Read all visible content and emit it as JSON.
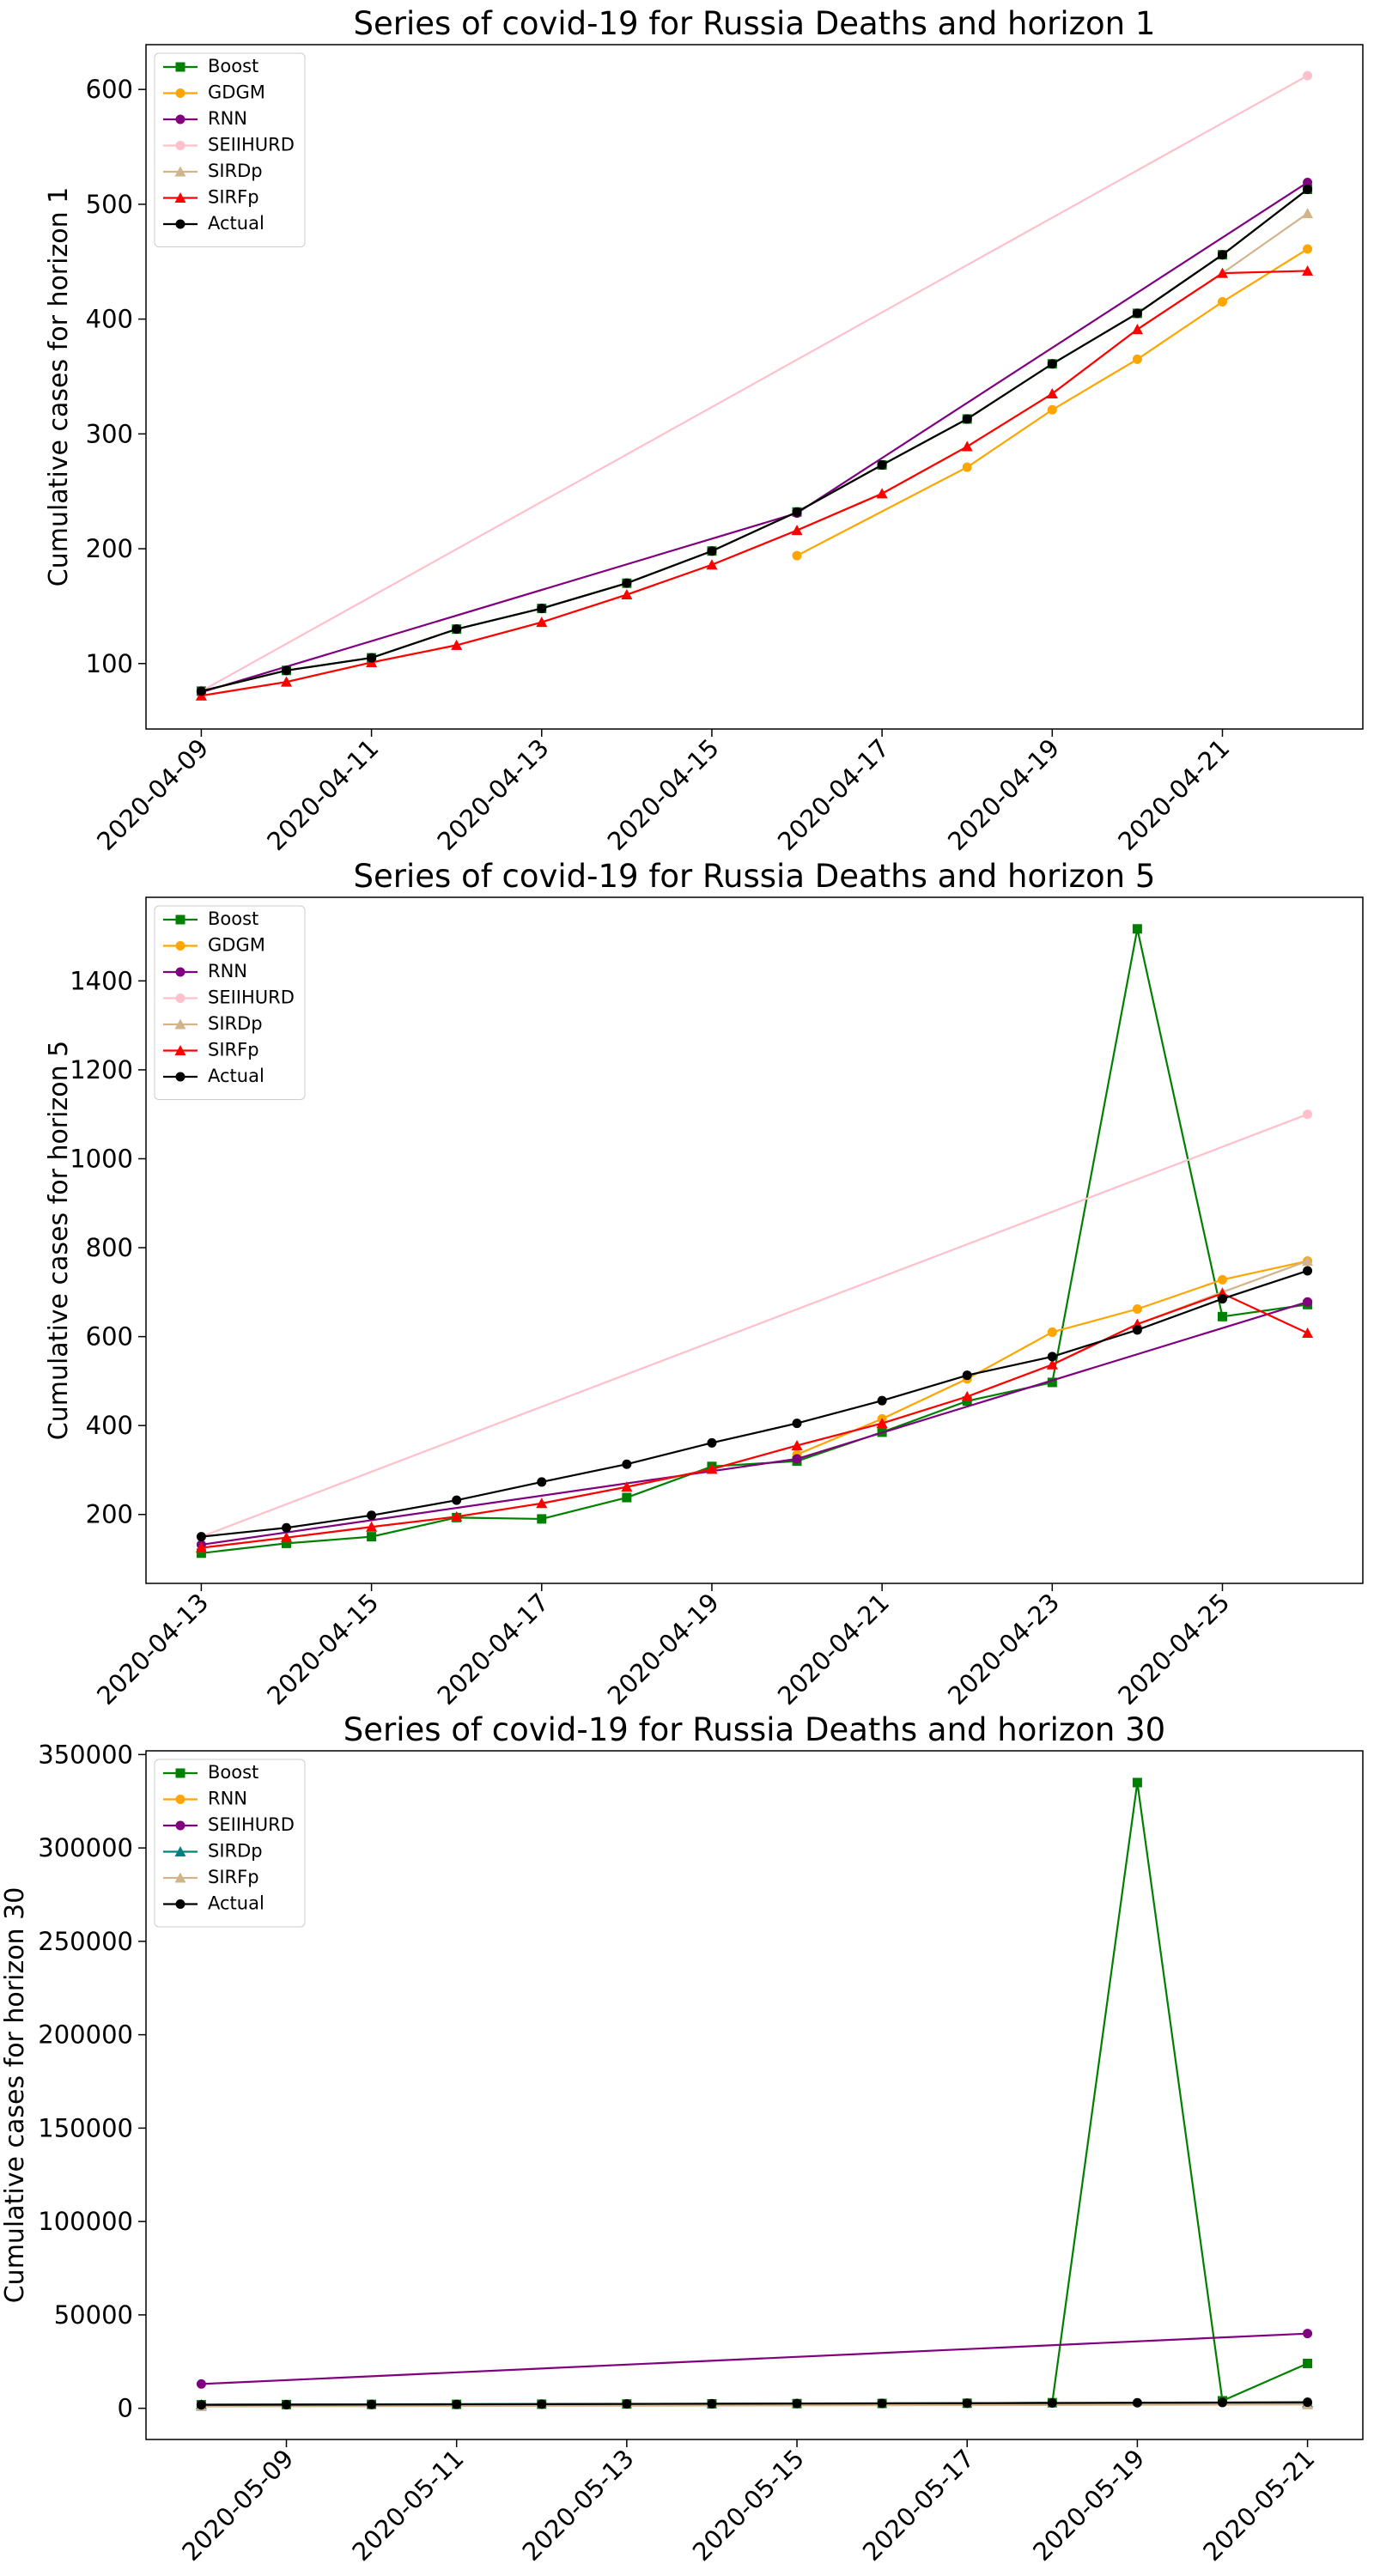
{
  "chart_data": [
    {
      "type": "line",
      "title": "Series of covid-19 for Russia Deaths and horizon 1",
      "ylabel": "Cumulative cases for horizon 1",
      "legend": "upper left",
      "ylim": [
        43,
        639
      ],
      "yticks": [
        100,
        200,
        300,
        400,
        500,
        600
      ],
      "xticks": [
        "2020-04-09",
        "2020-04-11",
        "2020-04-13",
        "2020-04-15",
        "2020-04-17",
        "2020-04-19",
        "2020-04-21"
      ],
      "series": [
        {
          "name": "Boost",
          "color": "green",
          "marker": "square",
          "x": [
            "2020-04-09",
            "2020-04-10",
            "2020-04-11",
            "2020-04-12",
            "2020-04-13",
            "2020-04-14",
            "2020-04-15",
            "2020-04-16",
            "2020-04-17",
            "2020-04-18",
            "2020-04-19",
            "2020-04-20",
            "2020-04-21",
            "2020-04-22"
          ],
          "values": [
            76,
            94,
            105,
            130,
            148,
            170,
            198,
            232,
            273,
            313,
            361,
            405,
            456,
            513
          ]
        },
        {
          "name": "GDGM",
          "color": "orange",
          "marker": "circle",
          "x": [
            "2020-04-16",
            "2020-04-18",
            "2020-04-19",
            "2020-04-20",
            "2020-04-21",
            "2020-04-22"
          ],
          "values": [
            194,
            271,
            321,
            365,
            415,
            461
          ]
        },
        {
          "name": "RNN",
          "color": "purple",
          "marker": "circle",
          "x": [
            "2020-04-09",
            "2020-04-16",
            "2020-04-22"
          ],
          "values": [
            75,
            231,
            519
          ]
        },
        {
          "name": "SEIIHURD",
          "color": "pink",
          "marker": "circle",
          "x": [
            "2020-04-09",
            "2020-04-22"
          ],
          "values": [
            76,
            612
          ]
        },
        {
          "name": "SIRDp",
          "color": "tan",
          "marker": "triangle",
          "x": [
            "2020-04-09",
            "2020-04-10",
            "2020-04-11",
            "2020-04-12",
            "2020-04-13",
            "2020-04-14",
            "2020-04-15",
            "2020-04-16",
            "2020-04-17",
            "2020-04-18",
            "2020-04-19",
            "2020-04-20",
            "2020-04-21",
            "2020-04-22"
          ],
          "values": [
            72,
            84,
            101,
            116,
            136,
            160,
            186,
            216,
            248,
            289,
            335,
            391,
            440,
            492
          ]
        },
        {
          "name": "SIRFp",
          "color": "red",
          "marker": "triangle",
          "x": [
            "2020-04-09",
            "2020-04-10",
            "2020-04-11",
            "2020-04-12",
            "2020-04-13",
            "2020-04-14",
            "2020-04-15",
            "2020-04-16",
            "2020-04-17",
            "2020-04-18",
            "2020-04-19",
            "2020-04-20",
            "2020-04-21",
            "2020-04-22"
          ],
          "values": [
            72,
            84,
            101,
            116,
            136,
            160,
            186,
            216,
            248,
            289,
            335,
            391,
            440,
            442
          ]
        },
        {
          "name": "Actual",
          "color": "black",
          "marker": "circle",
          "x": [
            "2020-04-09",
            "2020-04-10",
            "2020-04-11",
            "2020-04-12",
            "2020-04-13",
            "2020-04-14",
            "2020-04-15",
            "2020-04-16",
            "2020-04-17",
            "2020-04-18",
            "2020-04-19",
            "2020-04-20",
            "2020-04-21",
            "2020-04-22"
          ],
          "values": [
            76,
            94,
            105,
            130,
            148,
            170,
            198,
            232,
            273,
            313,
            361,
            405,
            456,
            513
          ]
        }
      ]
    },
    {
      "type": "line",
      "title": "Series of covid-19 for Russia Deaths and horizon 5",
      "ylabel": "Cumulative cases for horizon 5",
      "legend": "upper left",
      "ylim": [
        45,
        1588
      ],
      "yticks": [
        200,
        400,
        600,
        800,
        1000,
        1200,
        1400
      ],
      "xticks": [
        "2020-04-13",
        "2020-04-15",
        "2020-04-17",
        "2020-04-19",
        "2020-04-21",
        "2020-04-23",
        "2020-04-25"
      ],
      "series": [
        {
          "name": "Boost",
          "color": "green",
          "marker": "square",
          "x": [
            "2020-04-13",
            "2020-04-14",
            "2020-04-15",
            "2020-04-16",
            "2020-04-17",
            "2020-04-18",
            "2020-04-19",
            "2020-04-20",
            "2020-04-21",
            "2020-04-22",
            "2020-04-23",
            "2020-04-24",
            "2020-04-25",
            "2020-04-26"
          ],
          "values": [
            113,
            135,
            150,
            193,
            190,
            238,
            308,
            320,
            385,
            455,
            497,
            1517,
            645,
            672
          ]
        },
        {
          "name": "GDGM",
          "color": "orange",
          "marker": "circle",
          "x": [
            "2020-04-20",
            "2020-04-21",
            "2020-04-22",
            "2020-04-23",
            "2020-04-24",
            "2020-04-25",
            "2020-04-26"
          ],
          "values": [
            335,
            415,
            505,
            610,
            662,
            728,
            770
          ]
        },
        {
          "name": "RNN",
          "color": "purple",
          "marker": "circle",
          "x": [
            "2020-04-13",
            "2020-04-20",
            "2020-04-26"
          ],
          "values": [
            132,
            325,
            678
          ]
        },
        {
          "name": "SEIIHURD",
          "color": "pink",
          "marker": "circle",
          "x": [
            "2020-04-13",
            "2020-04-26"
          ],
          "values": [
            150,
            1100
          ]
        },
        {
          "name": "SIRDp",
          "color": "tan",
          "marker": "triangle",
          "x": [
            "2020-04-13",
            "2020-04-14",
            "2020-04-15",
            "2020-04-16",
            "2020-04-17",
            "2020-04-18",
            "2020-04-19",
            "2020-04-20",
            "2020-04-21",
            "2020-04-22",
            "2020-04-23",
            "2020-04-24",
            "2020-04-25",
            "2020-04-26"
          ],
          "values": [
            125,
            148,
            172,
            195,
            225,
            262,
            302,
            355,
            405,
            465,
            537,
            628,
            700,
            770
          ]
        },
        {
          "name": "SIRFp",
          "color": "red",
          "marker": "triangle",
          "x": [
            "2020-04-13",
            "2020-04-14",
            "2020-04-15",
            "2020-04-16",
            "2020-04-17",
            "2020-04-18",
            "2020-04-19",
            "2020-04-20",
            "2020-04-21",
            "2020-04-22",
            "2020-04-23",
            "2020-04-24",
            "2020-04-25",
            "2020-04-26"
          ],
          "values": [
            125,
            148,
            172,
            195,
            225,
            262,
            302,
            355,
            405,
            465,
            537,
            628,
            697,
            608
          ]
        },
        {
          "name": "Actual",
          "color": "black",
          "marker": "circle",
          "x": [
            "2020-04-13",
            "2020-04-14",
            "2020-04-15",
            "2020-04-16",
            "2020-04-17",
            "2020-04-18",
            "2020-04-19",
            "2020-04-20",
            "2020-04-21",
            "2020-04-22",
            "2020-04-23",
            "2020-04-24",
            "2020-04-25",
            "2020-04-26"
          ],
          "values": [
            150,
            170,
            198,
            232,
            273,
            313,
            361,
            405,
            456,
            513,
            555,
            615,
            685,
            748
          ]
        }
      ]
    },
    {
      "type": "line",
      "title": "Series of covid-19 for Russia Deaths and horizon 30",
      "ylabel": "Cumulative cases for horizon 30",
      "legend": "upper left",
      "ylim": [
        -16700,
        352000
      ],
      "yticks": [
        0,
        50000,
        100000,
        150000,
        200000,
        250000,
        300000,
        350000
      ],
      "xticks": [
        "2020-05-09",
        "2020-05-11",
        "2020-05-13",
        "2020-05-15",
        "2020-05-17",
        "2020-05-19",
        "2020-05-21"
      ],
      "series": [
        {
          "name": "Boost",
          "color": "green",
          "marker": "square",
          "x": [
            "2020-05-08",
            "2020-05-09",
            "2020-05-10",
            "2020-05-11",
            "2020-05-12",
            "2020-05-13",
            "2020-05-14",
            "2020-05-15",
            "2020-05-16",
            "2020-05-17",
            "2020-05-18",
            "2020-05-19",
            "2020-05-20",
            "2020-05-21"
          ],
          "values": [
            1900,
            2000,
            2100,
            2100,
            2200,
            2300,
            2400,
            2500,
            2600,
            2700,
            3000,
            335000,
            4000,
            24000
          ]
        },
        {
          "name": "RNN",
          "color": "orange",
          "marker": "circle",
          "x": [
            "2020-05-08",
            "2020-05-21"
          ],
          "values": [
            1800,
            2500
          ]
        },
        {
          "name": "SEIIHURD",
          "color": "purple",
          "marker": "circle",
          "x": [
            "2020-05-08",
            "2020-05-21"
          ],
          "values": [
            13000,
            40000
          ]
        },
        {
          "name": "SIRDp",
          "color": "teal",
          "marker": "triangle",
          "x": [
            "2020-05-08",
            "2020-05-21"
          ],
          "values": [
            2000,
            3000
          ]
        },
        {
          "name": "SIRFp",
          "color": "tan",
          "marker": "triangle",
          "x": [
            "2020-05-08",
            "2020-05-21"
          ],
          "values": [
            1000,
            2000
          ]
        },
        {
          "name": "Actual",
          "color": "black",
          "marker": "circle",
          "x": [
            "2020-05-08",
            "2020-05-09",
            "2020-05-10",
            "2020-05-11",
            "2020-05-12",
            "2020-05-13",
            "2020-05-14",
            "2020-05-15",
            "2020-05-16",
            "2020-05-17",
            "2020-05-18",
            "2020-05-19",
            "2020-05-20",
            "2020-05-21"
          ],
          "values": [
            1827,
            1915,
            2009,
            2116,
            2212,
            2305,
            2418,
            2537,
            2631,
            2722,
            2837,
            2972,
            3099,
            3249
          ]
        }
      ]
    }
  ]
}
